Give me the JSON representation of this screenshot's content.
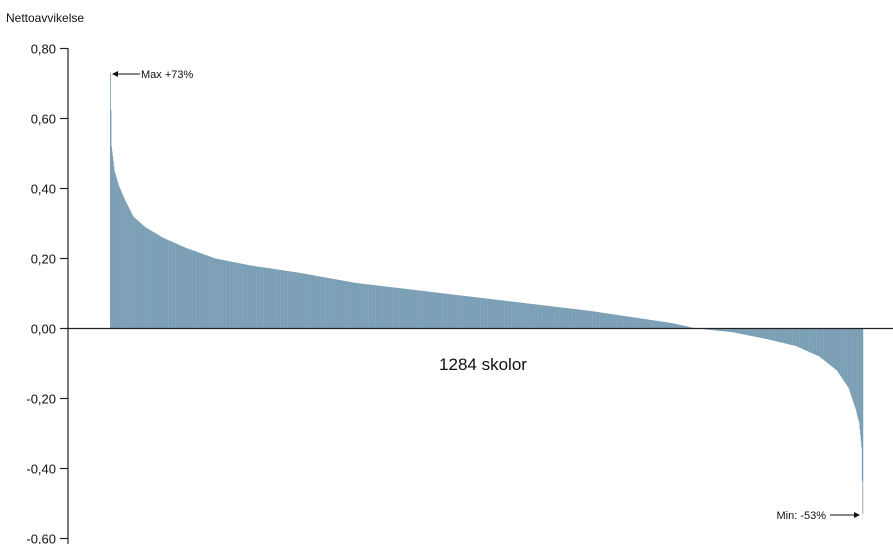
{
  "chart_data": {
    "type": "bar",
    "title": "",
    "ylabel": "Nettoavvikelse",
    "xlabel": "1284 skolor",
    "ylim": [
      -0.6,
      0.8
    ],
    "yticks": [
      0.8,
      0.6,
      0.4,
      0.2,
      0.0,
      -0.2,
      -0.4,
      -0.6
    ],
    "ytick_labels": [
      "0,80",
      "0,60",
      "0,40",
      "0,20",
      "0,00",
      "-0,20",
      "-0,40",
      "-0,60"
    ],
    "bar_color": "#7b9fb5",
    "sorted": "descending",
    "n_schools": 1284,
    "profile": [
      {
        "rank": 1,
        "value": 0.73
      },
      {
        "rank": 3,
        "value": 0.52
      },
      {
        "rank": 8,
        "value": 0.45
      },
      {
        "rank": 15,
        "value": 0.41
      },
      {
        "rank": 25,
        "value": 0.37
      },
      {
        "rank": 40,
        "value": 0.32
      },
      {
        "rank": 60,
        "value": 0.29
      },
      {
        "rank": 90,
        "value": 0.26
      },
      {
        "rank": 130,
        "value": 0.23
      },
      {
        "rank": 180,
        "value": 0.2
      },
      {
        "rank": 240,
        "value": 0.18
      },
      {
        "rank": 320,
        "value": 0.16
      },
      {
        "rank": 420,
        "value": 0.13
      },
      {
        "rank": 520,
        "value": 0.11
      },
      {
        "rank": 620,
        "value": 0.09
      },
      {
        "rank": 720,
        "value": 0.07
      },
      {
        "rank": 820,
        "value": 0.05
      },
      {
        "rank": 900,
        "value": 0.03
      },
      {
        "rank": 960,
        "value": 0.015
      },
      {
        "rank": 1000,
        "value": 0.0
      },
      {
        "rank": 1060,
        "value": -0.01
      },
      {
        "rank": 1120,
        "value": -0.03
      },
      {
        "rank": 1170,
        "value": -0.05
      },
      {
        "rank": 1210,
        "value": -0.08
      },
      {
        "rank": 1240,
        "value": -0.12
      },
      {
        "rank": 1260,
        "value": -0.17
      },
      {
        "rank": 1272,
        "value": -0.23
      },
      {
        "rank": 1278,
        "value": -0.27
      },
      {
        "rank": 1282,
        "value": -0.34
      },
      {
        "rank": 1284,
        "value": -0.53
      }
    ],
    "annotations": {
      "max_label": "Max +73%",
      "min_label": "Min: -53%"
    }
  }
}
